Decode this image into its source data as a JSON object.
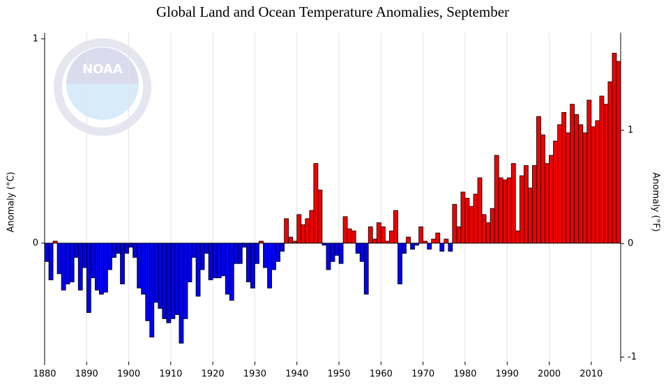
{
  "chart_data": {
    "type": "bar",
    "title": "Global Land and Ocean Temperature Anomalies, September",
    "y_label": "Anomaly (°C)",
    "y2_label": "Anomaly (°F)",
    "watermark": "NOAA",
    "x": [
      1880,
      1881,
      1882,
      1883,
      1884,
      1885,
      1886,
      1887,
      1888,
      1889,
      1890,
      1891,
      1892,
      1893,
      1894,
      1895,
      1896,
      1897,
      1898,
      1899,
      1900,
      1901,
      1902,
      1903,
      1904,
      1905,
      1906,
      1907,
      1908,
      1909,
      1910,
      1911,
      1912,
      1913,
      1914,
      1915,
      1916,
      1917,
      1918,
      1919,
      1920,
      1921,
      1922,
      1923,
      1924,
      1925,
      1926,
      1927,
      1928,
      1929,
      1930,
      1931,
      1932,
      1933,
      1934,
      1935,
      1936,
      1937,
      1938,
      1939,
      1940,
      1941,
      1942,
      1943,
      1944,
      1945,
      1946,
      1947,
      1948,
      1949,
      1950,
      1951,
      1952,
      1953,
      1954,
      1955,
      1956,
      1957,
      1958,
      1959,
      1960,
      1961,
      1962,
      1963,
      1964,
      1965,
      1966,
      1967,
      1968,
      1969,
      1970,
      1971,
      1972,
      1973,
      1974,
      1975,
      1976,
      1977,
      1978,
      1979,
      1980,
      1981,
      1982,
      1983,
      1984,
      1985,
      1986,
      1987,
      1988,
      1989,
      1990,
      1991,
      1992,
      1993,
      1994,
      1995,
      1996,
      1997,
      1998,
      1999,
      2000,
      2001,
      2002,
      2003,
      2004,
      2005,
      2006,
      2007,
      2008,
      2009,
      2010,
      2011,
      2012,
      2013,
      2014,
      2015,
      2016
    ],
    "values": [
      -0.09,
      -0.18,
      0.01,
      -0.15,
      -0.23,
      -0.2,
      -0.19,
      -0.07,
      -0.23,
      -0.12,
      -0.34,
      -0.17,
      -0.23,
      -0.25,
      -0.24,
      -0.13,
      -0.07,
      -0.05,
      -0.2,
      -0.05,
      -0.02,
      -0.07,
      -0.22,
      -0.25,
      -0.38,
      -0.46,
      -0.29,
      -0.32,
      -0.37,
      -0.39,
      -0.37,
      -0.35,
      -0.49,
      -0.37,
      -0.19,
      -0.07,
      -0.26,
      -0.13,
      -0.05,
      -0.18,
      -0.17,
      -0.17,
      -0.16,
      -0.25,
      -0.28,
      -0.1,
      -0.1,
      -0.02,
      -0.19,
      -0.22,
      -0.1,
      0.01,
      -0.12,
      -0.22,
      -0.13,
      -0.09,
      -0.04,
      0.12,
      0.03,
      0.01,
      0.14,
      0.09,
      0.12,
      0.16,
      0.39,
      0.26,
      -0.01,
      -0.13,
      -0.09,
      -0.06,
      -0.1,
      0.13,
      0.07,
      0.06,
      -0.05,
      -0.09,
      -0.25,
      0.08,
      0.02,
      0.1,
      0.08,
      0.01,
      0.06,
      0.16,
      -0.2,
      -0.05,
      0.03,
      -0.03,
      -0.01,
      0.08,
      0.01,
      -0.03,
      0.02,
      0.05,
      -0.04,
      0.02,
      -0.04,
      0.19,
      0.08,
      0.25,
      0.22,
      0.18,
      0.24,
      0.32,
      0.14,
      0.1,
      0.17,
      0.43,
      0.32,
      0.31,
      0.32,
      0.39,
      0.06,
      0.33,
      0.38,
      0.27,
      0.38,
      0.62,
      0.53,
      0.39,
      0.43,
      0.5,
      0.58,
      0.64,
      0.54,
      0.68,
      0.63,
      0.58,
      0.54,
      0.7,
      0.57,
      0.6,
      0.72,
      0.68,
      0.79,
      0.93,
      0.89
    ],
    "positive_color": "#ee0000",
    "negative_color": "#0000ee",
    "xlim": [
      1880,
      2017
    ],
    "xticks": [
      1880,
      1890,
      1900,
      1910,
      1920,
      1930,
      1940,
      1950,
      1960,
      1970,
      1980,
      1990,
      2000,
      2010
    ],
    "ylim": [
      -0.58,
      1.03
    ],
    "yticks": [
      0,
      1
    ],
    "y2lim": [
      -1.04,
      1.86
    ],
    "y2ticks": [
      -1,
      0,
      1
    ],
    "grid": true
  }
}
